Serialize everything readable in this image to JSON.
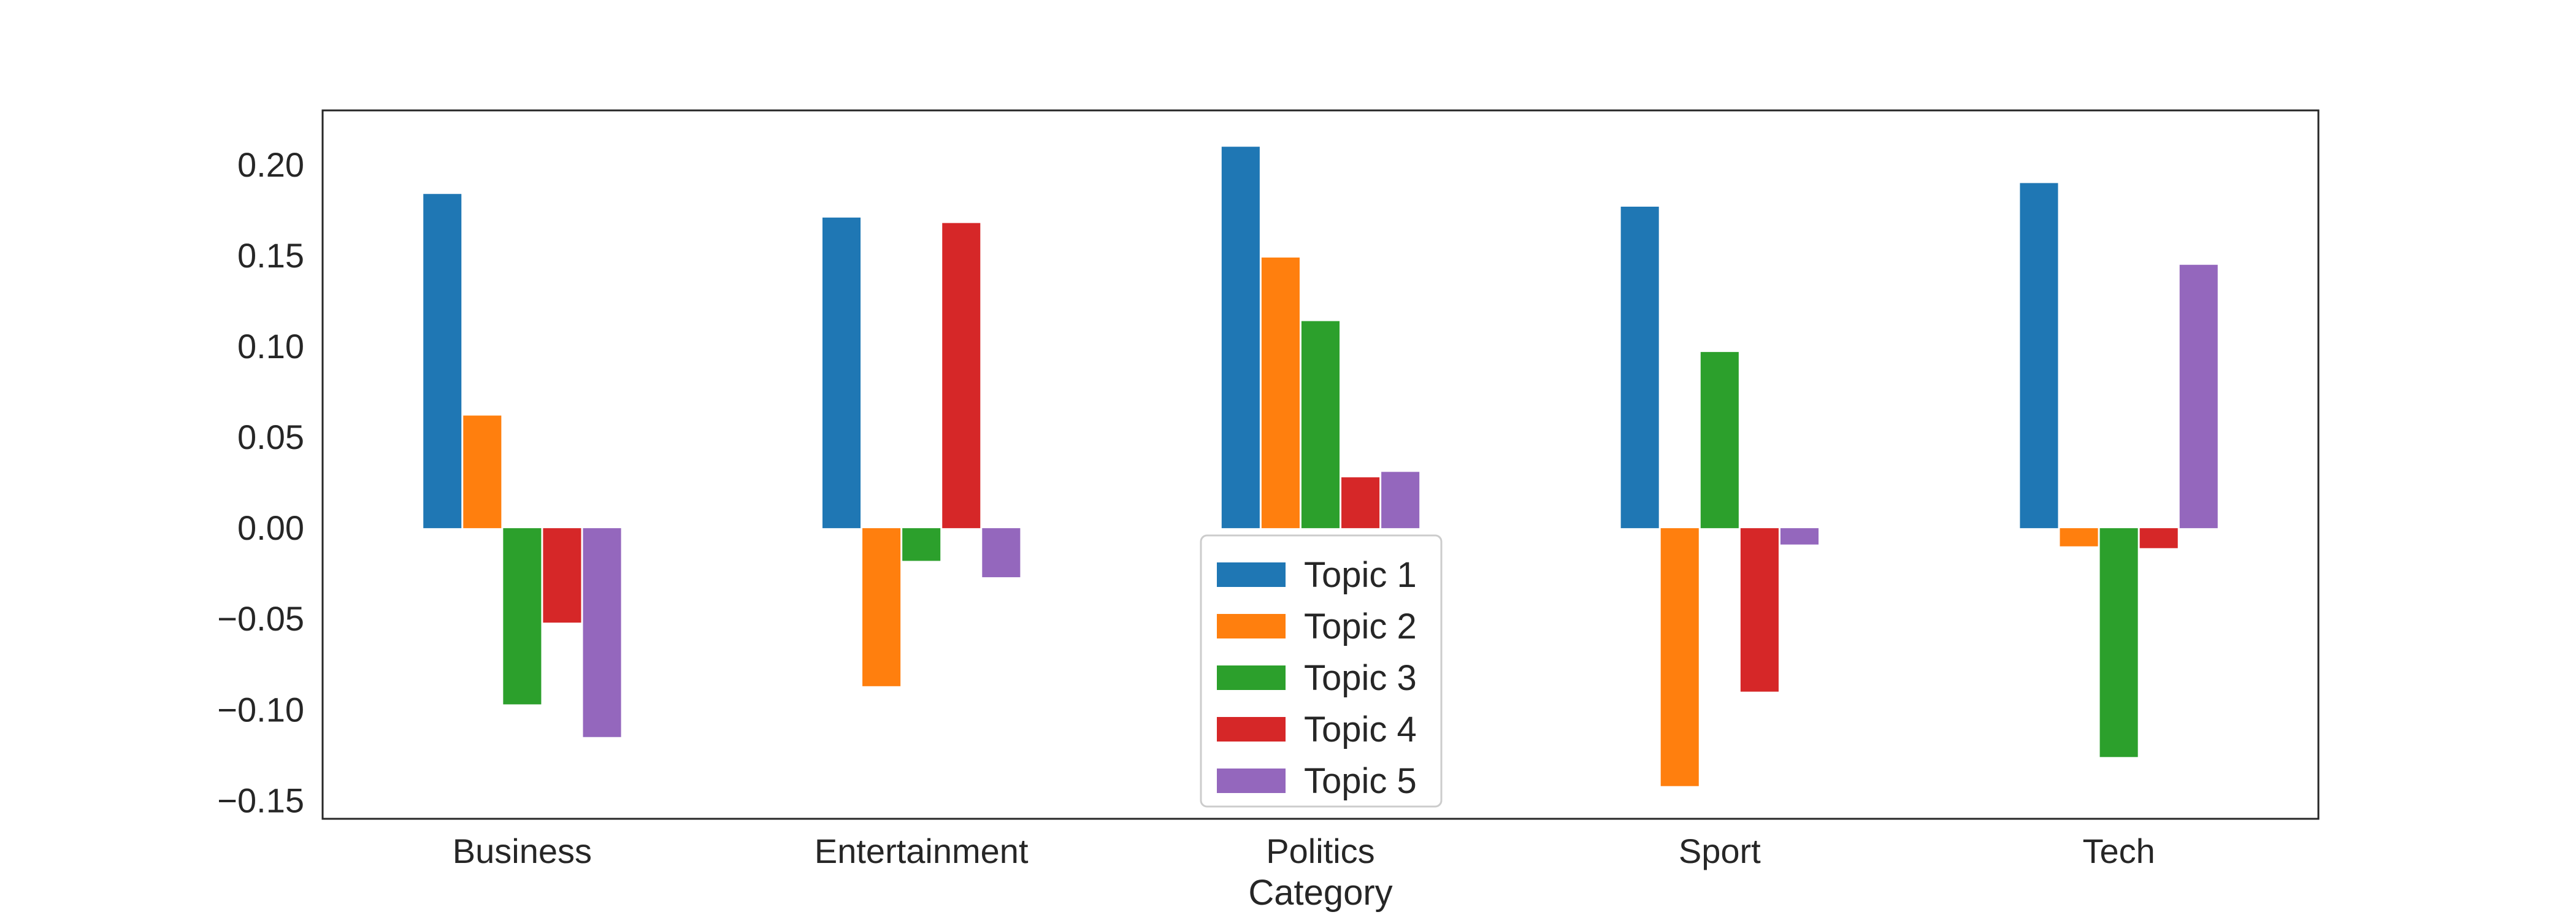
{
  "chart_data": {
    "type": "bar",
    "title": "",
    "xlabel": "Category",
    "ylabel": "",
    "categories": [
      "Business",
      "Entertainment",
      "Politics",
      "Sport",
      "Tech"
    ],
    "series": [
      {
        "name": "Topic 1",
        "color": "#1f77b4",
        "values": [
          0.184,
          0.171,
          0.21,
          0.177,
          0.19
        ]
      },
      {
        "name": "Topic 2",
        "color": "#ff7f0e",
        "values": [
          0.062,
          -0.087,
          0.149,
          -0.142,
          -0.01
        ]
      },
      {
        "name": "Topic 3",
        "color": "#2ca02c",
        "values": [
          -0.097,
          -0.018,
          0.114,
          0.097,
          -0.126
        ]
      },
      {
        "name": "Topic 4",
        "color": "#d62728",
        "values": [
          -0.052,
          0.168,
          0.028,
          -0.09,
          -0.011
        ]
      },
      {
        "name": "Topic 5",
        "color": "#9467bd",
        "values": [
          -0.115,
          -0.027,
          0.031,
          -0.009,
          0.145
        ]
      }
    ],
    "ylim": [
      -0.16,
      0.23
    ],
    "yticks": [
      -0.15,
      -0.1,
      -0.05,
      0.0,
      0.05,
      0.1,
      0.15,
      0.2
    ],
    "ytick_labels": [
      "−0.15",
      "−0.10",
      "−0.05",
      "0.00",
      "0.05",
      "0.10",
      "0.15",
      "0.20"
    ],
    "grid": false,
    "legend_position": "bottom-center"
  }
}
